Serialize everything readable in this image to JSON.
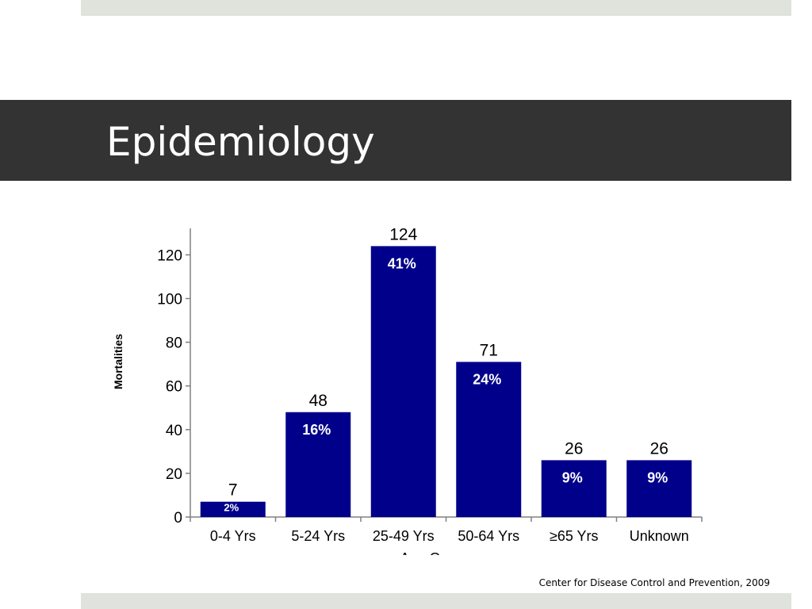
{
  "slide": {
    "title": "Epidemiology",
    "citation": "Center for Disease Control and Prevention, 2009"
  },
  "colors": {
    "bar": "#00008b",
    "title_bar": "#333333",
    "band": "#dfe3dc"
  },
  "chart_data": {
    "type": "bar",
    "ylabel": "Mortalities",
    "xlabel": "Age Groups",
    "categories": [
      "0-4 Yrs",
      "5-24 Yrs",
      "25-49 Yrs",
      "50-64 Yrs",
      "≥65  Yrs",
      "Unknown"
    ],
    "values": [
      7,
      48,
      124,
      71,
      26,
      26
    ],
    "value_labels": [
      "7",
      "48",
      "124",
      "71",
      "26",
      "26"
    ],
    "percent_labels": [
      "2%",
      "16%",
      "41%",
      "24%",
      "9%",
      "9%"
    ],
    "yticks": [
      "0",
      "20",
      "40",
      "60",
      "80",
      "100",
      "120"
    ],
    "ylim": [
      0,
      130
    ],
    "grid": false,
    "legend": "none"
  }
}
